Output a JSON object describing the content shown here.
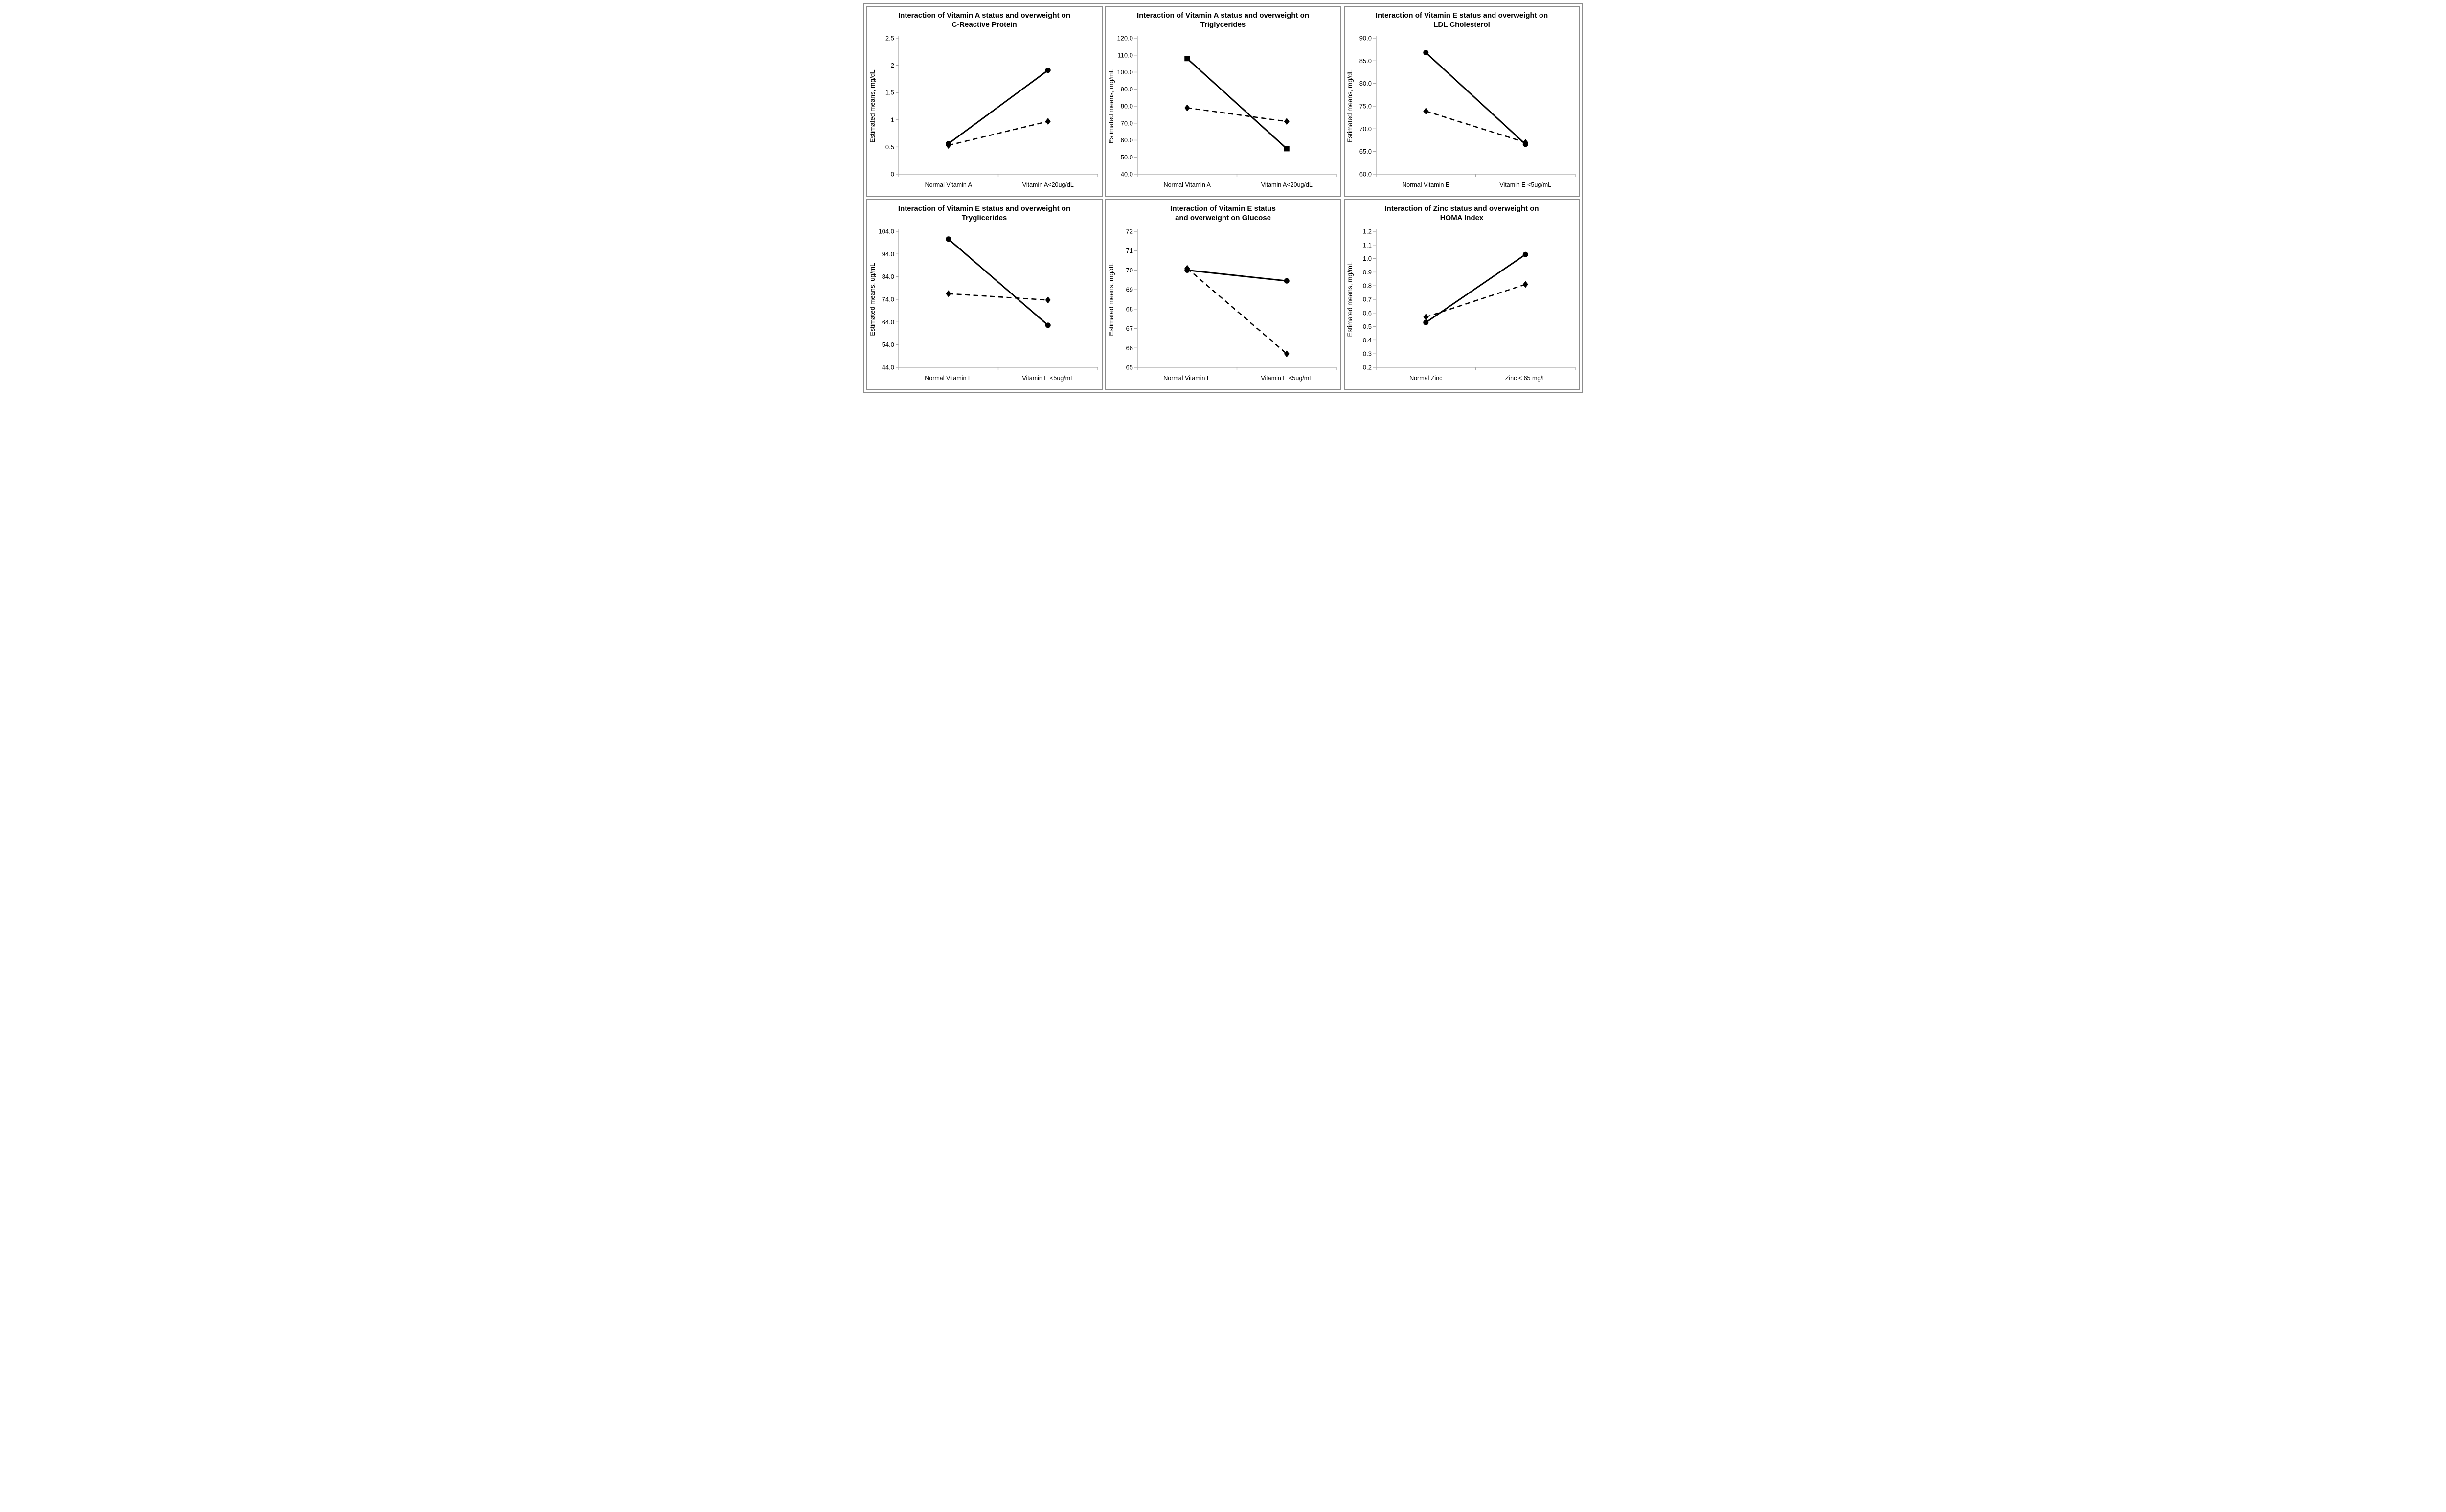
{
  "figure_background": "#ffffff",
  "frame_color": "#8c8c8c",
  "series_color": "#000000",
  "axis_color": "#a6a6a6",
  "chart_data": [
    {
      "type": "line",
      "title_lines": [
        "Interaction of Vitamin A status and overweight on",
        "C-Reactive Protein"
      ],
      "ylabel": "Estimated means, mg/dL",
      "categories": [
        "Normal Vitamin A",
        "Vitamin A<20ug/dL"
      ],
      "yticks": [
        "0",
        "0.5",
        "1",
        "1.5",
        "2",
        "2.5"
      ],
      "ylim": [
        0,
        2.5
      ],
      "grid": false,
      "legend": "none",
      "series": [
        {
          "name": "solid-circle-series",
          "line": "solid",
          "marker": "circle",
          "values": [
            0.56,
            1.91
          ]
        },
        {
          "name": "dashed-diamond-series",
          "line": "dashed",
          "marker": "diamond",
          "values": [
            0.53,
            0.97
          ]
        }
      ]
    },
    {
      "type": "line",
      "title_lines": [
        "Interaction of Vitamin A status and overweight on",
        "Triglycerides"
      ],
      "ylabel": "Estimated means, mg/mL",
      "categories": [
        "Normal Vitamin A",
        "Vitamin A<20ug/dL"
      ],
      "yticks": [
        "40.0",
        "50.0",
        "60.0",
        "70.0",
        "80.0",
        "90.0",
        "100.0",
        "110.0",
        "120.0"
      ],
      "ylim": [
        40,
        120
      ],
      "grid": false,
      "legend": "none",
      "series": [
        {
          "name": "solid-square-series",
          "line": "solid",
          "marker": "square",
          "values": [
            108,
            55
          ]
        },
        {
          "name": "dashed-diamond-series",
          "line": "dashed",
          "marker": "diamond",
          "values": [
            79,
            71
          ]
        }
      ]
    },
    {
      "type": "line",
      "title_lines": [
        "Interaction of Vitamin E status and overweight on",
        "LDL Cholesterol"
      ],
      "ylabel": "Estimated means, mg/dL",
      "categories": [
        "Normal Vitamin E",
        "Vitamin E <5ug/mL"
      ],
      "yticks": [
        "60.0",
        "65.0",
        "70.0",
        "75.0",
        "80.0",
        "85.0",
        "90.0"
      ],
      "ylim": [
        60,
        90
      ],
      "grid": false,
      "legend": "none",
      "series": [
        {
          "name": "solid-circle-series",
          "line": "solid",
          "marker": "circle",
          "values": [
            86.8,
            66.6
          ]
        },
        {
          "name": "dashed-diamond-series",
          "line": "dashed",
          "marker": "diamond",
          "values": [
            73.9,
            67.0
          ]
        }
      ]
    },
    {
      "type": "line",
      "title_lines": [
        "Interaction of Vitamin E status and overweight on",
        "Tryglicerides"
      ],
      "ylabel": "Estimated means, ug/mL",
      "categories": [
        "Normal Vitamin E",
        "Vitamin E <5ug/mL"
      ],
      "yticks": [
        "44.0",
        "54.0",
        "64.0",
        "74.0",
        "84.0",
        "94.0",
        "104.0"
      ],
      "ylim": [
        44,
        104
      ],
      "grid": false,
      "legend": "none",
      "series": [
        {
          "name": "solid-circle-series",
          "line": "solid",
          "marker": "circle",
          "values": [
            100.6,
            62.6
          ]
        },
        {
          "name": "dashed-diamond-series",
          "line": "dashed",
          "marker": "diamond",
          "values": [
            76.5,
            73.7
          ]
        }
      ]
    },
    {
      "type": "line",
      "title_lines": [
        "Interaction of Vitamin E  status",
        "and overweight on Glucose"
      ],
      "ylabel": "Estimated means, mg/dL",
      "categories": [
        "Normal Vitamin E",
        "Vitamin E <5ug/mL"
      ],
      "yticks": [
        "65",
        "66",
        "67",
        "68",
        "69",
        "70",
        "71",
        "72"
      ],
      "ylim": [
        65,
        72
      ],
      "grid": false,
      "legend": "none",
      "series": [
        {
          "name": "solid-circle-series",
          "line": "solid",
          "marker": "circle",
          "values": [
            70.0,
            69.45
          ]
        },
        {
          "name": "dashed-diamond-series",
          "line": "dashed",
          "marker": "diamond",
          "values": [
            70.1,
            65.7
          ]
        }
      ]
    },
    {
      "type": "line",
      "title_lines": [
        "Interaction of Zinc status and overweight on",
        "HOMA Index"
      ],
      "ylabel": "Estimated means, mg/mL",
      "categories": [
        "Normal Zinc",
        "Zinc < 65 mg/L"
      ],
      "yticks": [
        "0.2",
        "0.3",
        "0.4",
        "0.5",
        "0.6",
        "0.7",
        "0.8",
        "0.9",
        "1.0",
        "1.1",
        "1.2"
      ],
      "ylim": [
        0.2,
        1.2
      ],
      "grid": false,
      "legend": "none",
      "series": [
        {
          "name": "solid-circle-series",
          "line": "solid",
          "marker": "circle",
          "values": [
            0.53,
            1.03
          ]
        },
        {
          "name": "dashed-diamond-series",
          "line": "dashed",
          "marker": "diamond",
          "values": [
            0.57,
            0.81
          ]
        }
      ]
    }
  ]
}
